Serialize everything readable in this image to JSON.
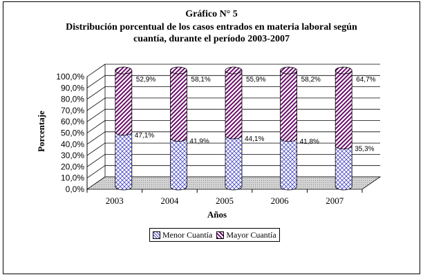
{
  "chart_data": {
    "type": "bar",
    "title": "Gráfico N° 5",
    "subtitle_lines": [
      "Distribución porcentual de los casos entrados en materia laboral según",
      "cuantía, durante el  período 2003-2007"
    ],
    "xlabel": "Años",
    "ylabel": "Porcentaje",
    "categories": [
      "2003",
      "2004",
      "2005",
      "2006",
      "2007"
    ],
    "series": [
      {
        "name": "Menor Cuantía",
        "values": [
          47.1,
          41.9,
          44.1,
          41.8,
          35.3
        ],
        "labels": [
          "47,1%",
          "41,9%",
          "44,1%",
          "41,8%",
          "35,3%"
        ],
        "color": "#3333cc"
      },
      {
        "name": "Mayor Cuantía",
        "values": [
          52.9,
          58.1,
          55.9,
          58.2,
          64.7
        ],
        "labels": [
          "52,9%",
          "58,1%",
          "55,9%",
          "58,2%",
          "64,7%"
        ],
        "color": "#660066"
      }
    ],
    "ylim": [
      0,
      100
    ],
    "yticks": [
      "0,0%",
      "10,0%",
      "20,0%",
      "30,0%",
      "40,0%",
      "50,0%",
      "60,0%",
      "70,0%",
      "80,0%",
      "90,0%",
      "100,0%"
    ],
    "stacked": true,
    "style": "3d-cylinder",
    "grid": true,
    "legend_position": "bottom"
  }
}
